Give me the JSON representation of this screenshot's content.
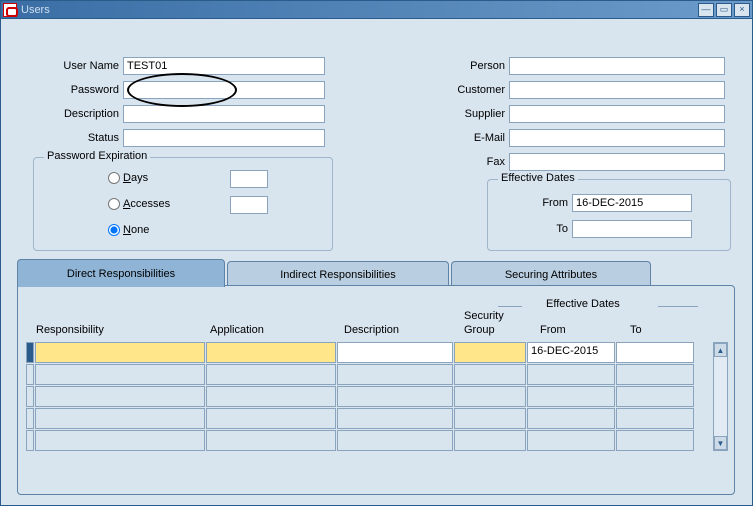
{
  "window": {
    "title": "Users"
  },
  "left_form": {
    "user_name": {
      "label": "User Name",
      "value": "TEST01"
    },
    "password": {
      "label": "Password",
      "value": ""
    },
    "description": {
      "label": "Description",
      "value": ""
    },
    "status": {
      "label": "Status",
      "value": ""
    }
  },
  "right_form": {
    "person": {
      "label": "Person",
      "value": ""
    },
    "customer": {
      "label": "Customer",
      "value": ""
    },
    "supplier": {
      "label": "Supplier",
      "value": ""
    },
    "email": {
      "label": "E-Mail",
      "value": ""
    },
    "fax": {
      "label": "Fax",
      "value": ""
    }
  },
  "password_expiration": {
    "legend": "Password Expiration",
    "options": {
      "days": "Days",
      "accesses": "Accesses",
      "none": "None"
    },
    "selected": "none"
  },
  "effective_dates": {
    "legend": "Effective Dates",
    "from_label": "From",
    "to_label": "To",
    "from_value": "16-DEC-2015",
    "to_value": ""
  },
  "tabs": {
    "direct": "Direct Responsibilities",
    "indirect": "Indirect Responsibilities",
    "securing": "Securing Attributes"
  },
  "grid": {
    "headers": {
      "responsibility": "Responsibility",
      "application": "Application",
      "description": "Description",
      "security_group_1": "Security",
      "security_group_2": "Group",
      "effective_dates": "Effective Dates",
      "from": "From",
      "to": "To"
    },
    "rows": [
      {
        "responsibility": "",
        "application": "",
        "description": "",
        "security_group": "",
        "from": "16-DEC-2015",
        "to": ""
      },
      {
        "responsibility": "",
        "application": "",
        "description": "",
        "security_group": "",
        "from": "",
        "to": ""
      },
      {
        "responsibility": "",
        "application": "",
        "description": "",
        "security_group": "",
        "from": "",
        "to": ""
      },
      {
        "responsibility": "",
        "application": "",
        "description": "",
        "security_group": "",
        "from": "",
        "to": ""
      },
      {
        "responsibility": "",
        "application": "",
        "description": "",
        "security_group": "",
        "from": "",
        "to": ""
      }
    ],
    "col_widths": {
      "responsibility": 170,
      "application": 130,
      "description": 116,
      "security_group": 72,
      "from": 88,
      "to": 78
    }
  },
  "colors": {
    "window_bg": "#d8e4ee",
    "field_border": "#8aa4bd",
    "highlight": "#ffe68a",
    "tab_active": "#8fb4d6"
  }
}
